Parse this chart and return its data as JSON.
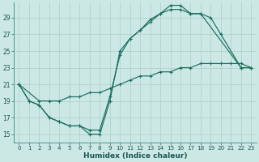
{
  "xlabel": "Humidex (Indice chaleur)",
  "bg_color": "#cce8e4",
  "line_color": "#1a6e62",
  "grid_color": "#b8d8d4",
  "xlim": [
    -0.5,
    23.5
  ],
  "ylim": [
    14.0,
    30.8
  ],
  "yticks": [
    15,
    17,
    19,
    21,
    23,
    25,
    27,
    29
  ],
  "xticks": [
    0,
    1,
    2,
    3,
    4,
    5,
    6,
    7,
    8,
    9,
    10,
    11,
    12,
    13,
    14,
    15,
    16,
    17,
    18,
    19,
    20,
    21,
    22,
    23
  ],
  "line1_x": [
    0,
    1,
    2,
    3,
    4,
    5,
    6,
    7,
    8,
    9,
    10,
    11,
    12,
    13,
    14,
    15,
    16,
    17,
    18,
    19,
    20,
    22,
    23
  ],
  "line1_y": [
    21,
    19,
    18.5,
    17,
    16.5,
    16,
    16,
    15,
    15,
    19,
    25,
    26.5,
    27.5,
    28.5,
    29.5,
    30.0,
    30.0,
    29.5,
    29.5,
    29.0,
    27,
    23,
    23
  ],
  "line2_x": [
    0,
    1,
    2,
    3,
    4,
    5,
    6,
    7,
    8,
    9,
    10,
    11,
    12,
    13,
    14,
    15,
    16,
    17,
    18,
    22,
    23
  ],
  "line2_y": [
    21,
    19,
    18.5,
    17,
    16.5,
    16,
    16,
    15.5,
    15.5,
    19.5,
    24.5,
    26.5,
    27.5,
    28.8,
    29.5,
    30.5,
    30.5,
    29.5,
    29.5,
    23,
    23
  ],
  "line3_x": [
    0,
    2,
    3,
    4,
    5,
    6,
    7,
    8,
    9,
    10,
    11,
    12,
    13,
    14,
    15,
    16,
    17,
    18,
    19,
    20,
    21,
    22,
    23
  ],
  "line3_y": [
    21,
    19,
    19,
    19,
    19.5,
    19.5,
    20,
    20,
    20.5,
    21,
    21.5,
    22,
    22,
    22.5,
    22.5,
    23,
    23,
    23.5,
    23.5,
    23.5,
    23.5,
    23.5,
    23
  ]
}
